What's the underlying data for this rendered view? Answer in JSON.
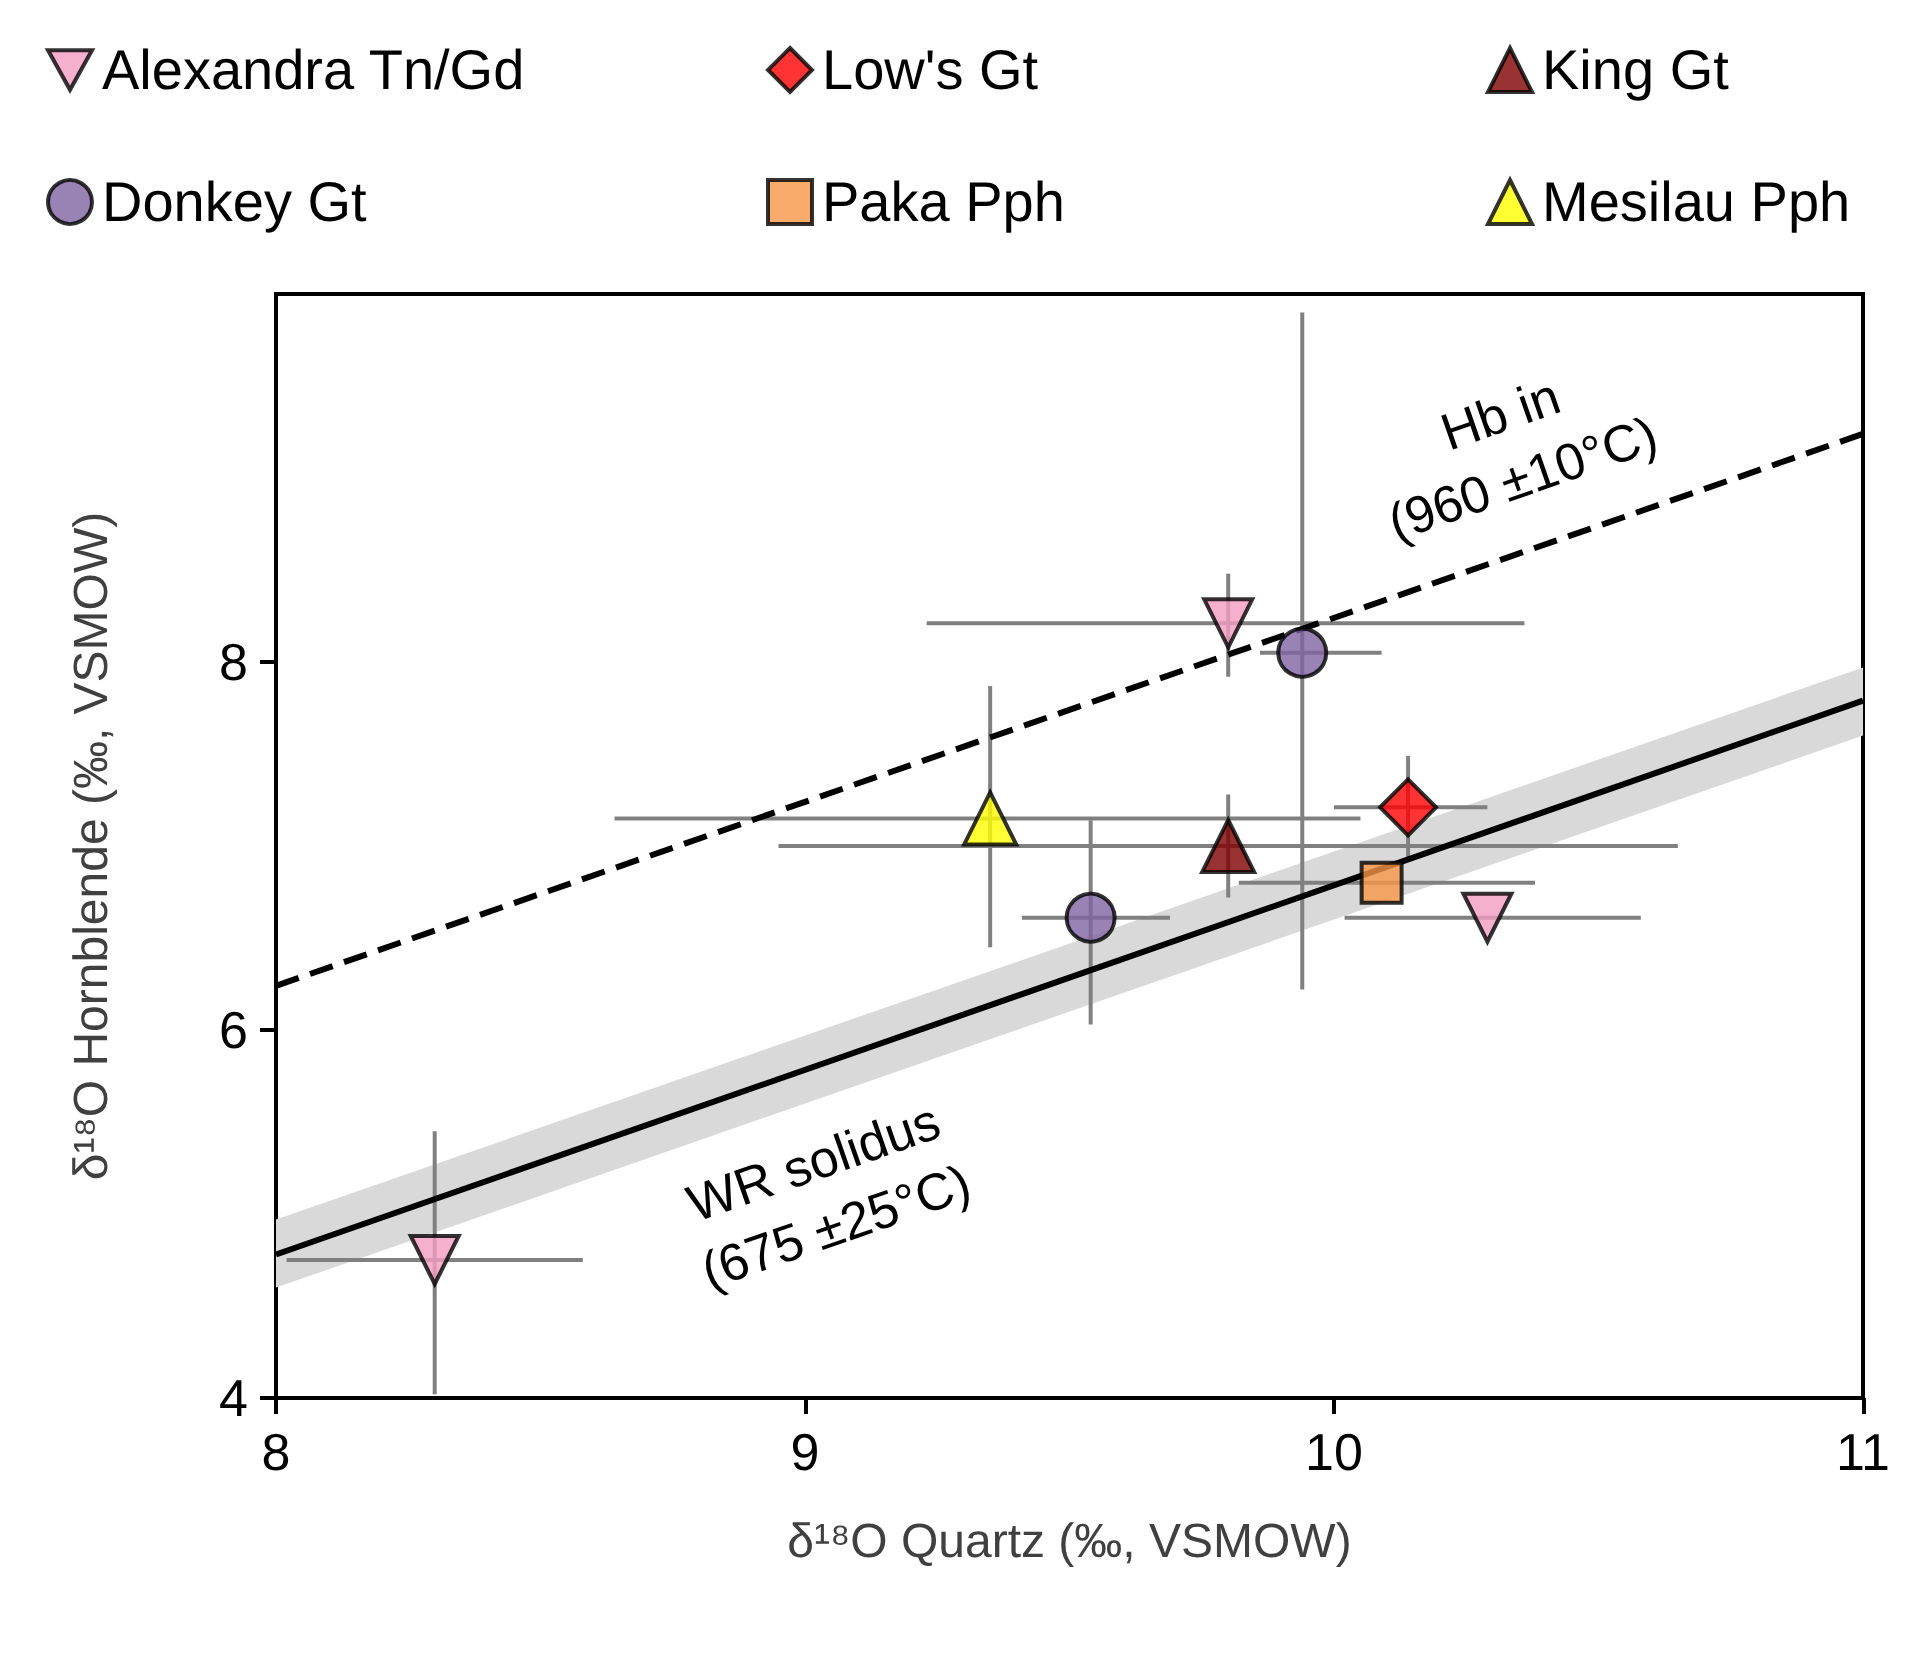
{
  "chart_data": {
    "type": "scatter",
    "xlabel": "δ¹⁸O Quartz (‰, VSMOW)",
    "ylabel": "δ¹⁸O Hornblende (‰, VSMOW)",
    "xlim": [
      8,
      11
    ],
    "xticks": [
      8,
      9,
      10,
      11
    ],
    "ylim": [
      4,
      10
    ],
    "yticks": [
      4,
      6,
      8
    ],
    "grid": false,
    "legend": "top",
    "series": [
      {
        "name": "Alexandra Tn/Gd",
        "color": "#f19cc0",
        "marker": "triangle_down",
        "x": [
          9.8,
          10.29,
          8.3
        ],
        "values": [
          8.21,
          6.61,
          4.75
        ],
        "xerrors": [
          [
            9.23,
            10.36
          ],
          [
            10.02,
            10.58
          ],
          [
            8.02,
            8.58
          ]
        ],
        "errors": [
          [
            7.92,
            8.48
          ],
          null,
          [
            4.02,
            5.45
          ]
        ]
      },
      {
        "name": "Low's Gt",
        "color": "#ff0000",
        "marker": "diamond",
        "x": [
          10.14
        ],
        "values": [
          7.21
        ],
        "xerrors": [
          [
            10.0,
            10.29
          ]
        ],
        "errors": [
          [
            6.92,
            7.49
          ]
        ]
      },
      {
        "name": "King Gt",
        "color": "#7f0000",
        "marker": "triangle",
        "x": [
          9.8
        ],
        "values": [
          7.0
        ],
        "xerrors": [
          [
            8.95,
            10.65
          ]
        ],
        "errors": [
          [
            6.72,
            7.28
          ]
        ]
      },
      {
        "name": "Donkey Gt",
        "color": "#8064a2",
        "marker": "circle",
        "x": [
          9.94,
          9.54
        ],
        "values": [
          8.05,
          6.61
        ],
        "xerrors": [
          [
            9.86,
            10.09
          ],
          [
            9.41,
            9.69
          ]
        ],
        "errors": [
          [
            6.22,
            9.9
          ],
          [
            6.03,
            7.14
          ]
        ]
      },
      {
        "name": "Paka Pph",
        "color": "#f79646",
        "marker": "square",
        "x": [
          10.09
        ],
        "values": [
          6.8
        ],
        "xerrors": [
          [
            9.82,
            10.38
          ]
        ],
        "errors": [
          null
        ]
      },
      {
        "name": "Mesilau Pph",
        "color": "#ffff00",
        "marker": "triangle",
        "x": [
          9.35
        ],
        "values": [
          7.15
        ],
        "xerrors": [
          [
            8.64,
            10.05
          ]
        ],
        "errors": [
          [
            6.45,
            7.87
          ]
        ]
      },
      {
        "type": "line",
        "color": "#000000",
        "line_style": "dashed",
        "marker": "none",
        "x": [
          8,
          11
        ],
        "values": [
          6.24,
          9.24
        ]
      },
      {
        "type": "line",
        "color": "#000000",
        "line_style": "solid",
        "marker": "none",
        "x": [
          8,
          11
        ],
        "values": [
          4.78,
          7.79
        ],
        "lower": [
          4.6,
          7.6
        ],
        "upper": [
          4.97,
          7.97
        ]
      }
    ],
    "annotations": [
      "Hb in\n(960 ±10°C)",
      "WR solidus\n(675 ±25°C)"
    ]
  }
}
